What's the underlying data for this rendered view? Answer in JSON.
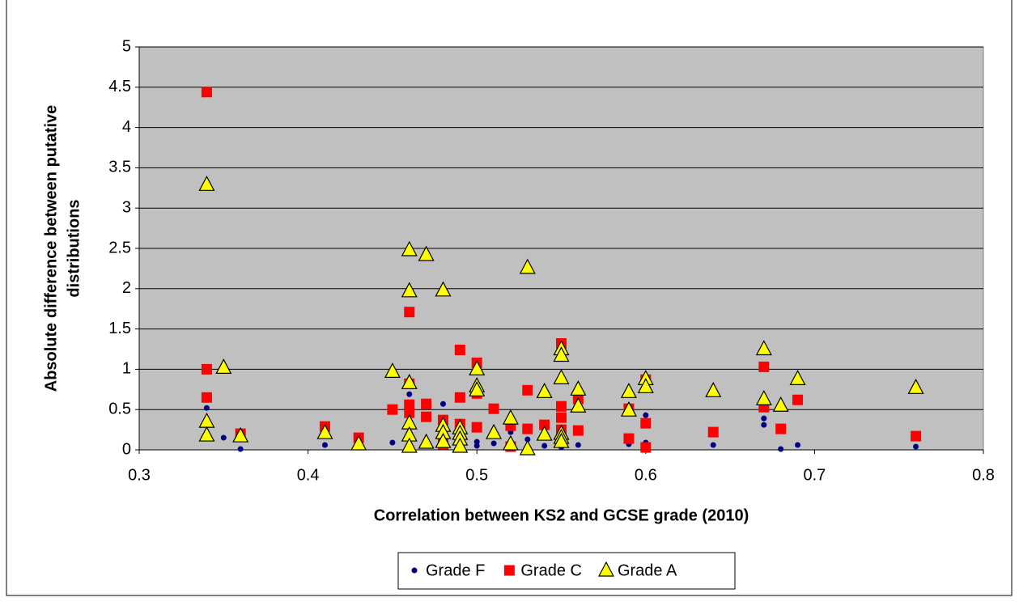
{
  "chart_data": {
    "type": "scatter",
    "x_label": "Correlation between KS2 and GCSE grade (2010)",
    "y_label": [
      "Absolute difference between putative",
      "distributions"
    ],
    "xlim": [
      0.3,
      0.8
    ],
    "xticks": [
      0.3,
      0.4,
      0.5,
      0.6,
      0.7,
      0.8
    ],
    "ylim": [
      0,
      5
    ],
    "yticks": [
      0,
      0.5,
      1,
      1.5,
      2,
      2.5,
      3,
      3.5,
      4,
      4.5,
      5
    ],
    "grid": true,
    "legend": "bottom",
    "series": [
      {
        "name": "Grade F",
        "color": "#000080",
        "marker": "circle",
        "x": [
          0.34,
          0.35,
          0.36,
          0.41,
          0.45,
          0.46,
          0.46,
          0.47,
          0.48,
          0.48,
          0.49,
          0.5,
          0.5,
          0.51,
          0.52,
          0.53,
          0.54,
          0.55,
          0.55,
          0.56,
          0.59,
          0.6,
          0.6,
          0.64,
          0.67,
          0.67,
          0.68,
          0.69,
          0.76
        ],
        "values": [
          0.52,
          0.15,
          0.01,
          0.06,
          0.09,
          0.69,
          0.05,
          0.05,
          0.57,
          0.1,
          0.05,
          0.1,
          0.05,
          0.08,
          0.22,
          0.13,
          0.05,
          0.03,
          0.1,
          0.06,
          0.07,
          0.43,
          0.09,
          0.06,
          0.39,
          0.31,
          0.01,
          0.06,
          0.04
        ]
      },
      {
        "name": "Grade C",
        "color": "#ff0000",
        "marker": "square",
        "x": [
          0.34,
          0.34,
          0.34,
          0.36,
          0.41,
          0.43,
          0.45,
          0.46,
          0.46,
          0.46,
          0.46,
          0.47,
          0.47,
          0.48,
          0.48,
          0.49,
          0.49,
          0.49,
          0.5,
          0.5,
          0.5,
          0.51,
          0.52,
          0.52,
          0.53,
          0.53,
          0.54,
          0.55,
          0.55,
          0.55,
          0.55,
          0.56,
          0.56,
          0.59,
          0.59,
          0.6,
          0.6,
          0.6,
          0.64,
          0.67,
          0.67,
          0.68,
          0.69,
          0.76
        ],
        "values": [
          4.44,
          1.0,
          0.65,
          0.2,
          0.29,
          0.15,
          0.5,
          1.71,
          0.82,
          0.56,
          0.46,
          0.57,
          0.41,
          0.37,
          0.07,
          1.24,
          0.65,
          0.32,
          1.08,
          0.7,
          0.28,
          0.51,
          0.3,
          0.04,
          0.74,
          0.26,
          0.31,
          1.32,
          0.54,
          0.4,
          0.25,
          0.63,
          0.24,
          0.51,
          0.14,
          0.87,
          0.33,
          0.03,
          0.22,
          1.03,
          0.53,
          0.26,
          0.62,
          0.17
        ]
      },
      {
        "name": "Grade A",
        "color": "#ffff00",
        "marker": "triangle",
        "x": [
          0.34,
          0.34,
          0.34,
          0.35,
          0.36,
          0.41,
          0.43,
          0.45,
          0.46,
          0.46,
          0.46,
          0.46,
          0.46,
          0.46,
          0.47,
          0.47,
          0.48,
          0.48,
          0.48,
          0.48,
          0.49,
          0.49,
          0.49,
          0.49,
          0.5,
          0.5,
          0.5,
          0.51,
          0.52,
          0.52,
          0.53,
          0.53,
          0.54,
          0.54,
          0.55,
          0.55,
          0.55,
          0.55,
          0.55,
          0.55,
          0.56,
          0.56,
          0.59,
          0.59,
          0.6,
          0.6,
          0.64,
          0.67,
          0.67,
          0.68,
          0.69,
          0.76
        ],
        "values": [
          3.29,
          0.35,
          0.18,
          1.02,
          0.17,
          0.21,
          0.07,
          0.97,
          2.48,
          1.97,
          0.83,
          0.33,
          0.18,
          0.04,
          2.42,
          0.09,
          1.98,
          0.3,
          0.21,
          0.1,
          0.27,
          0.2,
          0.13,
          0.04,
          1.0,
          0.79,
          0.74,
          0.21,
          0.39,
          0.07,
          2.26,
          0.01,
          0.72,
          0.19,
          1.25,
          1.17,
          0.89,
          0.2,
          0.15,
          0.1,
          0.75,
          0.54,
          0.72,
          0.49,
          0.88,
          0.78,
          0.73,
          1.25,
          0.63,
          0.55,
          0.88,
          0.77
        ]
      }
    ]
  }
}
